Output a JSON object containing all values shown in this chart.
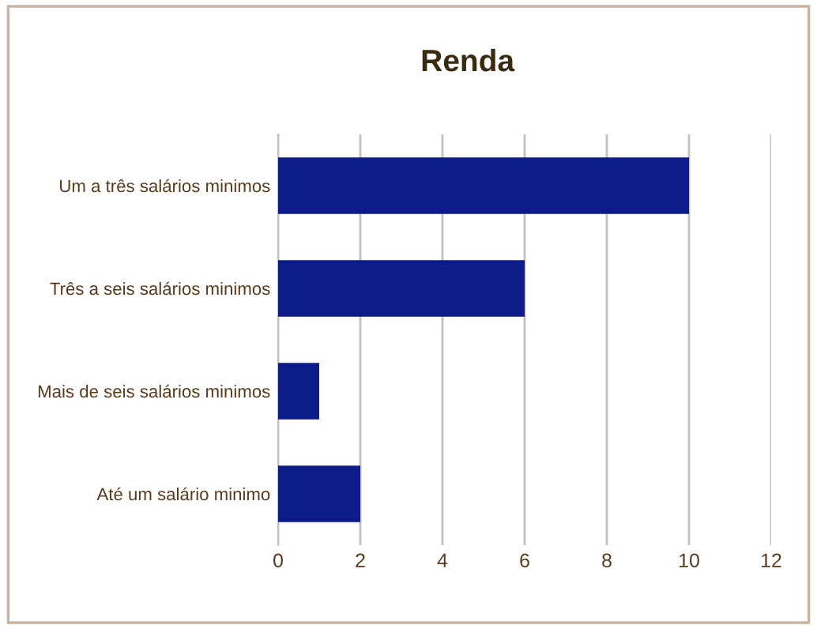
{
  "chart_data": {
    "type": "bar",
    "orientation": "horizontal",
    "title": "Renda",
    "categories": [
      "Um a três salários minimos",
      "Três a seis salários minimos",
      "Mais de seis salários minimos",
      "Até um salário minimo"
    ],
    "values": [
      10,
      6,
      1,
      2
    ],
    "color": "#0d1a8a",
    "xlim": [
      0,
      12
    ],
    "xticks": [
      0,
      2,
      4,
      6,
      8,
      10,
      12
    ],
    "grid": "x",
    "legend": false
  }
}
